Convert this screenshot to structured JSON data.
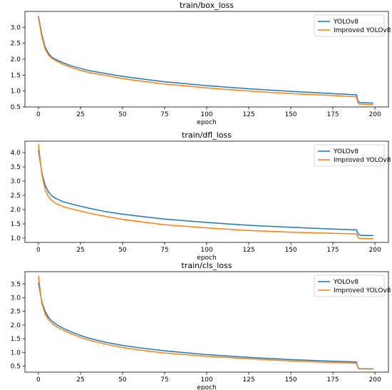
{
  "chart_data": [
    {
      "type": "line",
      "title": "train/box_loss",
      "xlabel": "epoch",
      "ylabel": "",
      "xlim": [
        -8,
        208
      ],
      "ylim": [
        0.5,
        3.5
      ],
      "xticks": [
        0,
        25,
        50,
        75,
        100,
        125,
        150,
        175,
        200
      ],
      "yticks": [
        0.5,
        1.0,
        1.5,
        2.0,
        2.5,
        3.0
      ],
      "ytick_labels": [
        "0.5",
        "1.0",
        "1.5",
        "2.0",
        "2.5",
        "3.0"
      ],
      "legend_position": "upper-right",
      "series": [
        {
          "name": "YOLOv8",
          "color": "#1f77b4",
          "x": [
            0,
            2,
            4,
            6,
            8,
            10,
            15,
            20,
            25,
            30,
            40,
            50,
            60,
            75,
            100,
            125,
            150,
            175,
            189,
            190,
            191,
            199
          ],
          "y": [
            3.35,
            2.78,
            2.38,
            2.18,
            2.06,
            2.0,
            1.88,
            1.78,
            1.71,
            1.64,
            1.55,
            1.46,
            1.39,
            1.29,
            1.17,
            1.07,
            0.99,
            0.92,
            0.88,
            0.68,
            0.64,
            0.62
          ]
        },
        {
          "name": "Improved YOLOv8",
          "color": "#ff7f0e",
          "x": [
            0,
            2,
            4,
            6,
            8,
            10,
            15,
            20,
            25,
            30,
            40,
            50,
            60,
            75,
            100,
            125,
            150,
            175,
            189,
            190,
            191,
            199
          ],
          "y": [
            3.3,
            2.72,
            2.32,
            2.13,
            2.03,
            1.96,
            1.83,
            1.73,
            1.65,
            1.58,
            1.49,
            1.39,
            1.32,
            1.22,
            1.1,
            1.0,
            0.92,
            0.86,
            0.82,
            0.62,
            0.59,
            0.57
          ]
        }
      ]
    },
    {
      "type": "line",
      "title": "train/dfl_loss",
      "xlabel": "epoch",
      "ylabel": "",
      "xlim": [
        -8,
        208
      ],
      "ylim": [
        0.85,
        4.4
      ],
      "xticks": [
        0,
        25,
        50,
        75,
        100,
        125,
        150,
        175,
        200
      ],
      "yticks": [
        1.0,
        1.5,
        2.0,
        2.5,
        3.0,
        3.5,
        4.0
      ],
      "ytick_labels": [
        "1.0",
        "1.5",
        "2.0",
        "2.5",
        "3.0",
        "3.5",
        "4.0"
      ],
      "legend_position": "upper-right",
      "series": [
        {
          "name": "YOLOv8",
          "color": "#1f77b4",
          "x": [
            0,
            2,
            4,
            6,
            8,
            10,
            15,
            20,
            25,
            30,
            40,
            50,
            60,
            75,
            100,
            125,
            150,
            175,
            189,
            190,
            191,
            199
          ],
          "y": [
            4.1,
            3.3,
            2.85,
            2.62,
            2.48,
            2.4,
            2.27,
            2.19,
            2.12,
            2.05,
            1.93,
            1.84,
            1.77,
            1.67,
            1.55,
            1.45,
            1.38,
            1.32,
            1.29,
            1.15,
            1.1,
            1.09
          ]
        },
        {
          "name": "Improved YOLOv8",
          "color": "#ff7f0e",
          "x": [
            0,
            2,
            4,
            6,
            8,
            10,
            15,
            20,
            25,
            30,
            40,
            50,
            60,
            75,
            100,
            125,
            150,
            175,
            189,
            190,
            191,
            199
          ],
          "y": [
            4.3,
            3.25,
            2.7,
            2.45,
            2.32,
            2.23,
            2.1,
            2.02,
            1.95,
            1.88,
            1.76,
            1.66,
            1.58,
            1.47,
            1.36,
            1.27,
            1.21,
            1.17,
            1.15,
            1.02,
            0.99,
            0.98
          ]
        }
      ]
    },
    {
      "type": "line",
      "title": "train/cls_loss",
      "xlabel": "epoch",
      "ylabel": "",
      "xlim": [
        -8,
        208
      ],
      "ylim": [
        0.28,
        3.95
      ],
      "xticks": [
        0,
        25,
        50,
        75,
        100,
        125,
        150,
        175,
        200
      ],
      "yticks": [
        0.5,
        1.0,
        1.5,
        2.0,
        2.5,
        3.0,
        3.5
      ],
      "ytick_labels": [
        "0.5",
        "1.0",
        "1.5",
        "2.0",
        "2.5",
        "3.0",
        "3.5"
      ],
      "legend_position": "upper-right",
      "series": [
        {
          "name": "YOLOv8",
          "color": "#1f77b4",
          "x": [
            0,
            2,
            4,
            6,
            8,
            10,
            15,
            20,
            25,
            30,
            40,
            50,
            60,
            75,
            100,
            125,
            150,
            175,
            189,
            190,
            191,
            199
          ],
          "y": [
            3.55,
            2.85,
            2.5,
            2.28,
            2.15,
            2.05,
            1.87,
            1.74,
            1.62,
            1.52,
            1.37,
            1.26,
            1.17,
            1.06,
            0.92,
            0.82,
            0.74,
            0.68,
            0.65,
            0.43,
            0.41,
            0.4
          ]
        },
        {
          "name": "Improved YOLOv8",
          "color": "#ff7f0e",
          "x": [
            0,
            2,
            4,
            6,
            8,
            10,
            15,
            20,
            25,
            30,
            40,
            50,
            60,
            75,
            100,
            125,
            150,
            175,
            189,
            190,
            191,
            199
          ],
          "y": [
            3.8,
            2.8,
            2.4,
            2.2,
            2.07,
            1.97,
            1.8,
            1.67,
            1.55,
            1.45,
            1.3,
            1.18,
            1.09,
            0.98,
            0.86,
            0.77,
            0.69,
            0.63,
            0.61,
            0.42,
            0.4,
            0.39
          ]
        }
      ]
    }
  ]
}
